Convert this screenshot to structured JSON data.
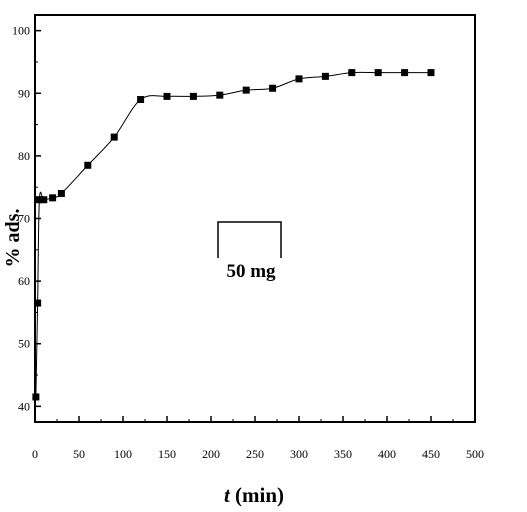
{
  "chart_data": {
    "type": "scatter",
    "xlabel_italic": "t",
    "xlabel_rest": " (min)",
    "ylabel": "% ads.",
    "xlim": [
      0,
      500
    ],
    "ylim": [
      37.5,
      102.5
    ],
    "xticks": [
      "0",
      "50",
      "100",
      "150",
      "200",
      "250",
      "300",
      "350",
      "400",
      "450",
      "500"
    ],
    "yticks": [
      "40",
      "50",
      "60",
      "70",
      "80",
      "90",
      "100"
    ],
    "grid": false,
    "legend_label": "50 mg",
    "series": [
      {
        "marker": "square",
        "line": "smooth",
        "color": "#000000",
        "x": [
          1,
          3,
          5,
          10,
          20,
          30,
          60,
          90,
          120,
          150,
          180,
          210,
          240,
          270,
          300,
          330,
          360,
          390,
          420,
          450
        ],
        "y": [
          41.5,
          56.5,
          73,
          73,
          73.3,
          74,
          78.5,
          83,
          89,
          89.5,
          89.5,
          89.7,
          90.5,
          90.8,
          92.3,
          92.7,
          93.3,
          93.3,
          93.3,
          93.3
        ]
      }
    ]
  }
}
